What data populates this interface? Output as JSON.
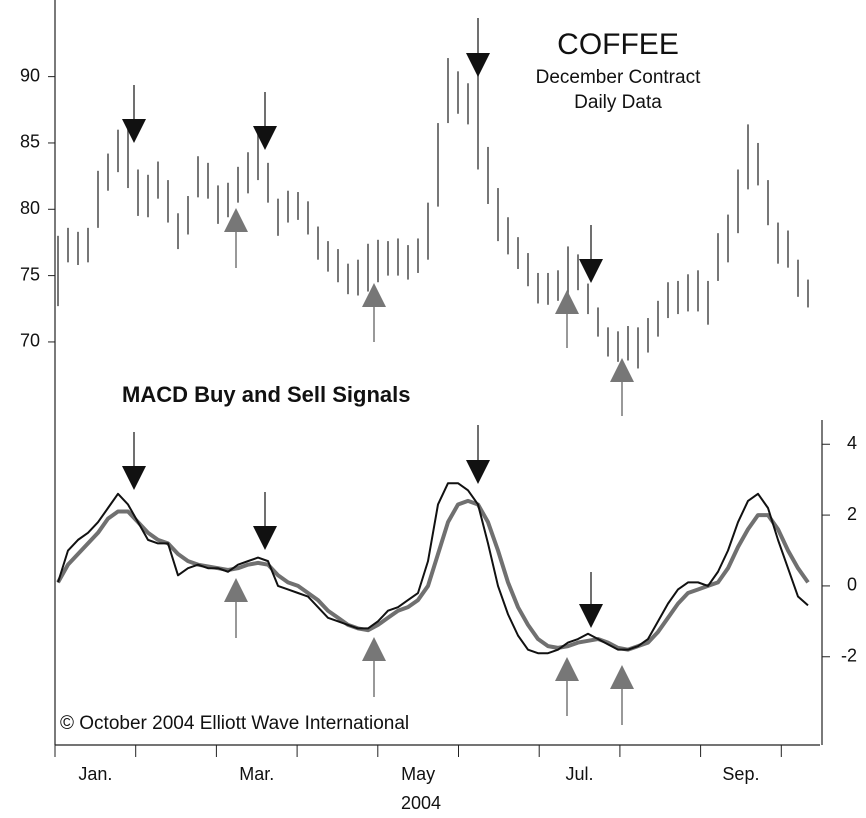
{
  "chart_data": [
    {
      "type": "bar",
      "title": "COFFEE",
      "subtitle": [
        "December Contract",
        "Daily Data"
      ],
      "high": [
        78,
        78.6,
        78.3,
        78.6,
        82.9,
        84.2,
        86,
        86.2,
        83,
        82.6,
        83.6,
        82.2,
        79.7,
        81,
        84,
        83.5,
        81.8,
        82,
        83.2,
        84.3,
        85.9,
        83.5,
        80.8,
        81.4,
        81.3,
        80.6,
        78.7,
        77.6,
        77,
        75.9,
        76.2,
        77.4,
        77.7,
        77.6,
        77.8,
        77.3,
        77.8,
        80.5,
        86.5,
        91.4,
        90.4,
        89.5,
        91,
        84.7,
        81.6,
        79.4,
        77.9,
        76.7,
        75.2,
        75.2,
        75.4,
        77.2,
        76.6,
        74.4,
        72.6,
        71.1,
        70.8,
        71.2,
        71.1,
        71.8,
        73.1,
        74.5,
        74.6,
        75.1,
        75.4,
        74.6,
        78.2,
        79.6,
        83,
        86.4,
        85,
        82.2,
        79,
        78.4,
        76.2,
        74.7
      ],
      "low": [
        72.7,
        76,
        75.8,
        76,
        78.6,
        81.4,
        82.8,
        81.6,
        79.5,
        79.4,
        80.8,
        79,
        77,
        78.1,
        80.9,
        80.8,
        78.9,
        79.4,
        80.5,
        81.2,
        82.2,
        80.5,
        78,
        79,
        79.2,
        78.1,
        76.2,
        75.3,
        74.5,
        73.6,
        73.5,
        73.8,
        74.5,
        75,
        75,
        74.7,
        75.2,
        76.2,
        80.2,
        86.5,
        87.2,
        86.4,
        83,
        80.4,
        77.6,
        76.6,
        75.5,
        74.2,
        72.9,
        72.8,
        73.1,
        73.4,
        73.9,
        72.1,
        70.4,
        68.9,
        68.5,
        68.6,
        68,
        69.2,
        70.4,
        71.8,
        72.1,
        72.3,
        72.3,
        71.3,
        74.6,
        76,
        78.2,
        81.5,
        81.8,
        78.8,
        75.9,
        75.6,
        73.4,
        72.6
      ],
      "ylim": [
        66,
        95
      ],
      "yticks": [
        70,
        75,
        80,
        85,
        90
      ]
    },
    {
      "type": "line",
      "title": "MACD Buy and Sell Signals",
      "series": [
        {
          "color": "#111111",
          "values": [
            0.1,
            1.0,
            1.3,
            1.5,
            1.8,
            2.2,
            2.6,
            2.3,
            1.8,
            1.3,
            1.2,
            1.2,
            0.3,
            0.5,
            0.6,
            0.5,
            0.5,
            0.4,
            0.6,
            0.7,
            0.8,
            0.7,
            0,
            -0.1,
            -0.2,
            -0.3,
            -0.6,
            -0.9,
            -1.0,
            -1.1,
            -1.2,
            -1.2,
            -1.0,
            -0.7,
            -0.6,
            -0.4,
            -0.2,
            0.7,
            2.3,
            2.9,
            2.9,
            2.7,
            2.3,
            1.2,
            0,
            -0.8,
            -1.4,
            -1.8,
            -1.9,
            -1.9,
            -1.8,
            -1.6,
            -1.5,
            -1.35,
            -1.5,
            -1.65,
            -1.8,
            -1.8,
            -1.7,
            -1.5,
            -1.0,
            -0.5,
            -0.1,
            0.1,
            0.1,
            0,
            0.4,
            1.0,
            1.8,
            2.4,
            2.6,
            2.2,
            1.3,
            0.5,
            -0.3,
            -0.55
          ]
        },
        {
          "color": "#707070",
          "values": [
            0.1,
            0.6,
            0.9,
            1.2,
            1.5,
            1.9,
            2.1,
            2.1,
            1.8,
            1.5,
            1.3,
            1.2,
            0.9,
            0.7,
            0.6,
            0.55,
            0.5,
            0.45,
            0.5,
            0.6,
            0.65,
            0.6,
            0.3,
            0.1,
            0,
            -0.2,
            -0.4,
            -0.7,
            -0.9,
            -1.1,
            -1.2,
            -1.25,
            -1.1,
            -0.9,
            -0.7,
            -0.6,
            -0.4,
            0,
            0.9,
            1.8,
            2.3,
            2.4,
            2.3,
            1.8,
            1.0,
            0.1,
            -0.6,
            -1.1,
            -1.5,
            -1.7,
            -1.75,
            -1.7,
            -1.6,
            -1.55,
            -1.5,
            -1.6,
            -1.75,
            -1.8,
            -1.7,
            -1.6,
            -1.3,
            -0.9,
            -0.5,
            -0.2,
            -0.1,
            0,
            0.1,
            0.5,
            1.1,
            1.6,
            2.0,
            2.0,
            1.6,
            1.0,
            0.5,
            0.1
          ]
        }
      ],
      "ylim": [
        -4.5,
        4.6
      ],
      "yticks": [
        -2,
        0,
        2,
        4
      ]
    }
  ],
  "x_axis": {
    "categories": [
      "Jan.",
      null,
      "Mar.",
      null,
      "May",
      null,
      "Jul.",
      null,
      "Sep.",
      null
    ],
    "label": "2004"
  },
  "annotation": "© October 2004 Elliott Wave International"
}
